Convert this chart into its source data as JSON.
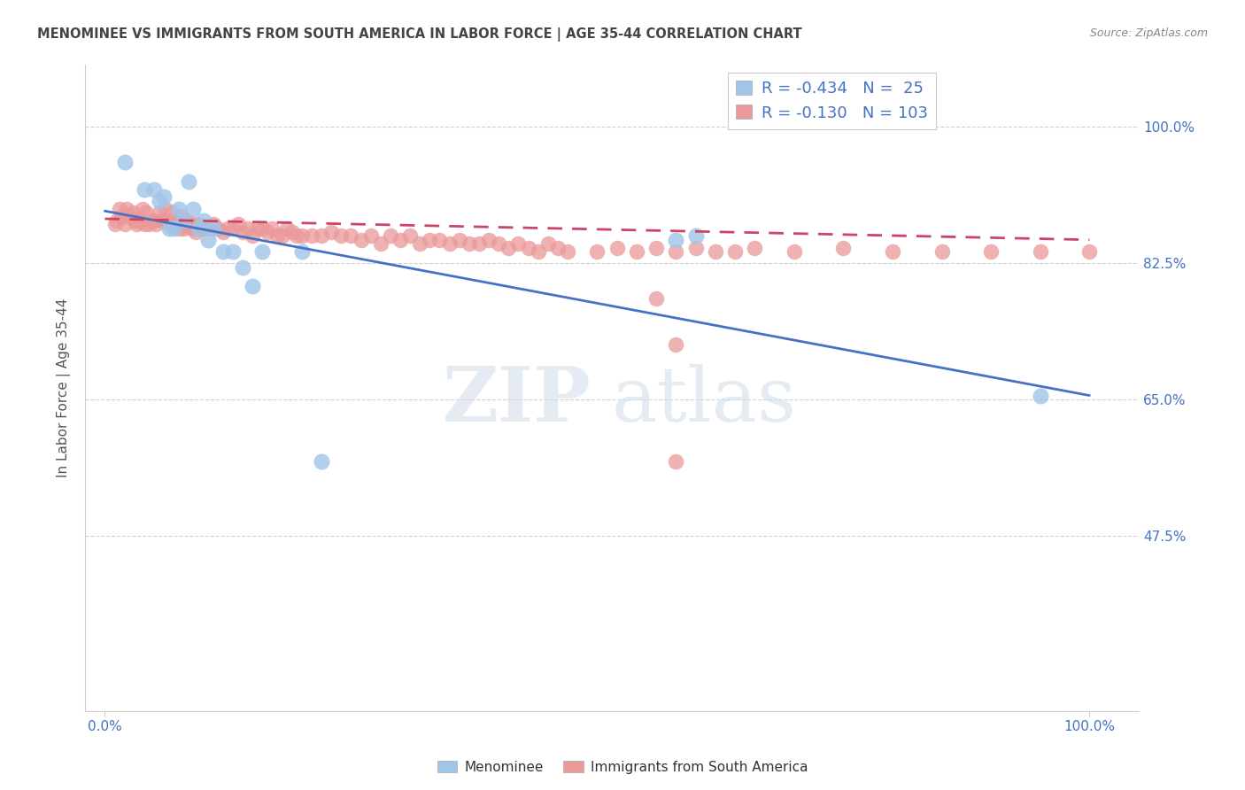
{
  "title": "MENOMINEE VS IMMIGRANTS FROM SOUTH AMERICA IN LABOR FORCE | AGE 35-44 CORRELATION CHART",
  "source": "Source: ZipAtlas.com",
  "ylabel": "In Labor Force | Age 35-44",
  "xlim": [
    -0.02,
    1.05
  ],
  "ylim": [
    0.25,
    1.08
  ],
  "yticks": [
    0.475,
    0.65,
    0.825,
    1.0
  ],
  "ytick_labels": [
    "47.5%",
    "65.0%",
    "82.5%",
    "100.0%"
  ],
  "xtick_labels_left": "0.0%",
  "xtick_labels_right": "100.0%",
  "grid_color": "#cccccc",
  "background_color": "#ffffff",
  "title_color": "#444444",
  "title_fontsize": 10.5,
  "axis_label_color": "#555555",
  "tick_label_color": "#4472c4",
  "watermark_line1": "ZIP",
  "watermark_line2": "atlas",
  "legend_line1": "R = -0.434   N =  25",
  "legend_line2": "R = -0.130   N = 103",
  "blue_color": "#9fc5e8",
  "pink_color": "#ea9999",
  "blue_line_color": "#4472c4",
  "pink_line_color": "#cc4466",
  "blue_line_x": [
    0.0,
    1.0
  ],
  "blue_line_y": [
    0.892,
    0.655
  ],
  "pink_line_x": [
    0.0,
    1.0
  ],
  "pink_line_y": [
    0.882,
    0.855
  ],
  "menominee_x": [
    0.02,
    0.04,
    0.05,
    0.055,
    0.06,
    0.065,
    0.07,
    0.075,
    0.08,
    0.085,
    0.09,
    0.095,
    0.1,
    0.105,
    0.11,
    0.12,
    0.13,
    0.14,
    0.15,
    0.16,
    0.2,
    0.22,
    0.58,
    0.6,
    0.95
  ],
  "menominee_y": [
    0.955,
    0.92,
    0.92,
    0.905,
    0.91,
    0.87,
    0.87,
    0.895,
    0.88,
    0.93,
    0.895,
    0.87,
    0.88,
    0.855,
    0.87,
    0.84,
    0.84,
    0.82,
    0.795,
    0.84,
    0.84,
    0.57,
    0.855,
    0.86,
    0.655
  ],
  "sa_x": [
    0.01,
    0.012,
    0.015,
    0.018,
    0.02,
    0.022,
    0.025,
    0.028,
    0.03,
    0.032,
    0.035,
    0.038,
    0.04,
    0.042,
    0.045,
    0.048,
    0.05,
    0.052,
    0.055,
    0.058,
    0.06,
    0.062,
    0.065,
    0.068,
    0.07,
    0.072,
    0.075,
    0.078,
    0.08,
    0.082,
    0.085,
    0.088,
    0.09,
    0.092,
    0.095,
    0.098,
    0.1,
    0.105,
    0.11,
    0.115,
    0.12,
    0.125,
    0.13,
    0.135,
    0.14,
    0.145,
    0.15,
    0.155,
    0.16,
    0.165,
    0.17,
    0.175,
    0.18,
    0.185,
    0.19,
    0.195,
    0.2,
    0.21,
    0.22,
    0.23,
    0.24,
    0.25,
    0.26,
    0.27,
    0.28,
    0.29,
    0.3,
    0.31,
    0.32,
    0.33,
    0.34,
    0.35,
    0.36,
    0.37,
    0.38,
    0.39,
    0.4,
    0.41,
    0.42,
    0.43,
    0.44,
    0.45,
    0.46,
    0.47,
    0.5,
    0.52,
    0.54,
    0.56,
    0.58,
    0.6,
    0.62,
    0.64,
    0.66,
    0.7,
    0.75,
    0.8,
    0.85,
    0.9,
    0.95,
    1.0,
    0.56,
    0.58,
    0.58
  ],
  "sa_y": [
    0.875,
    0.88,
    0.895,
    0.885,
    0.875,
    0.895,
    0.885,
    0.89,
    0.88,
    0.875,
    0.88,
    0.895,
    0.875,
    0.89,
    0.875,
    0.88,
    0.88,
    0.875,
    0.89,
    0.88,
    0.88,
    0.895,
    0.875,
    0.89,
    0.88,
    0.875,
    0.87,
    0.885,
    0.87,
    0.88,
    0.875,
    0.87,
    0.875,
    0.865,
    0.875,
    0.87,
    0.87,
    0.87,
    0.875,
    0.87,
    0.865,
    0.87,
    0.87,
    0.875,
    0.865,
    0.87,
    0.86,
    0.87,
    0.87,
    0.865,
    0.87,
    0.86,
    0.86,
    0.87,
    0.865,
    0.86,
    0.86,
    0.86,
    0.86,
    0.865,
    0.86,
    0.86,
    0.855,
    0.86,
    0.85,
    0.86,
    0.855,
    0.86,
    0.85,
    0.855,
    0.855,
    0.85,
    0.855,
    0.85,
    0.85,
    0.855,
    0.85,
    0.845,
    0.85,
    0.845,
    0.84,
    0.85,
    0.845,
    0.84,
    0.84,
    0.845,
    0.84,
    0.845,
    0.84,
    0.845,
    0.84,
    0.84,
    0.845,
    0.84,
    0.845,
    0.84,
    0.84,
    0.84,
    0.84,
    0.84,
    0.78,
    0.57,
    0.72
  ]
}
